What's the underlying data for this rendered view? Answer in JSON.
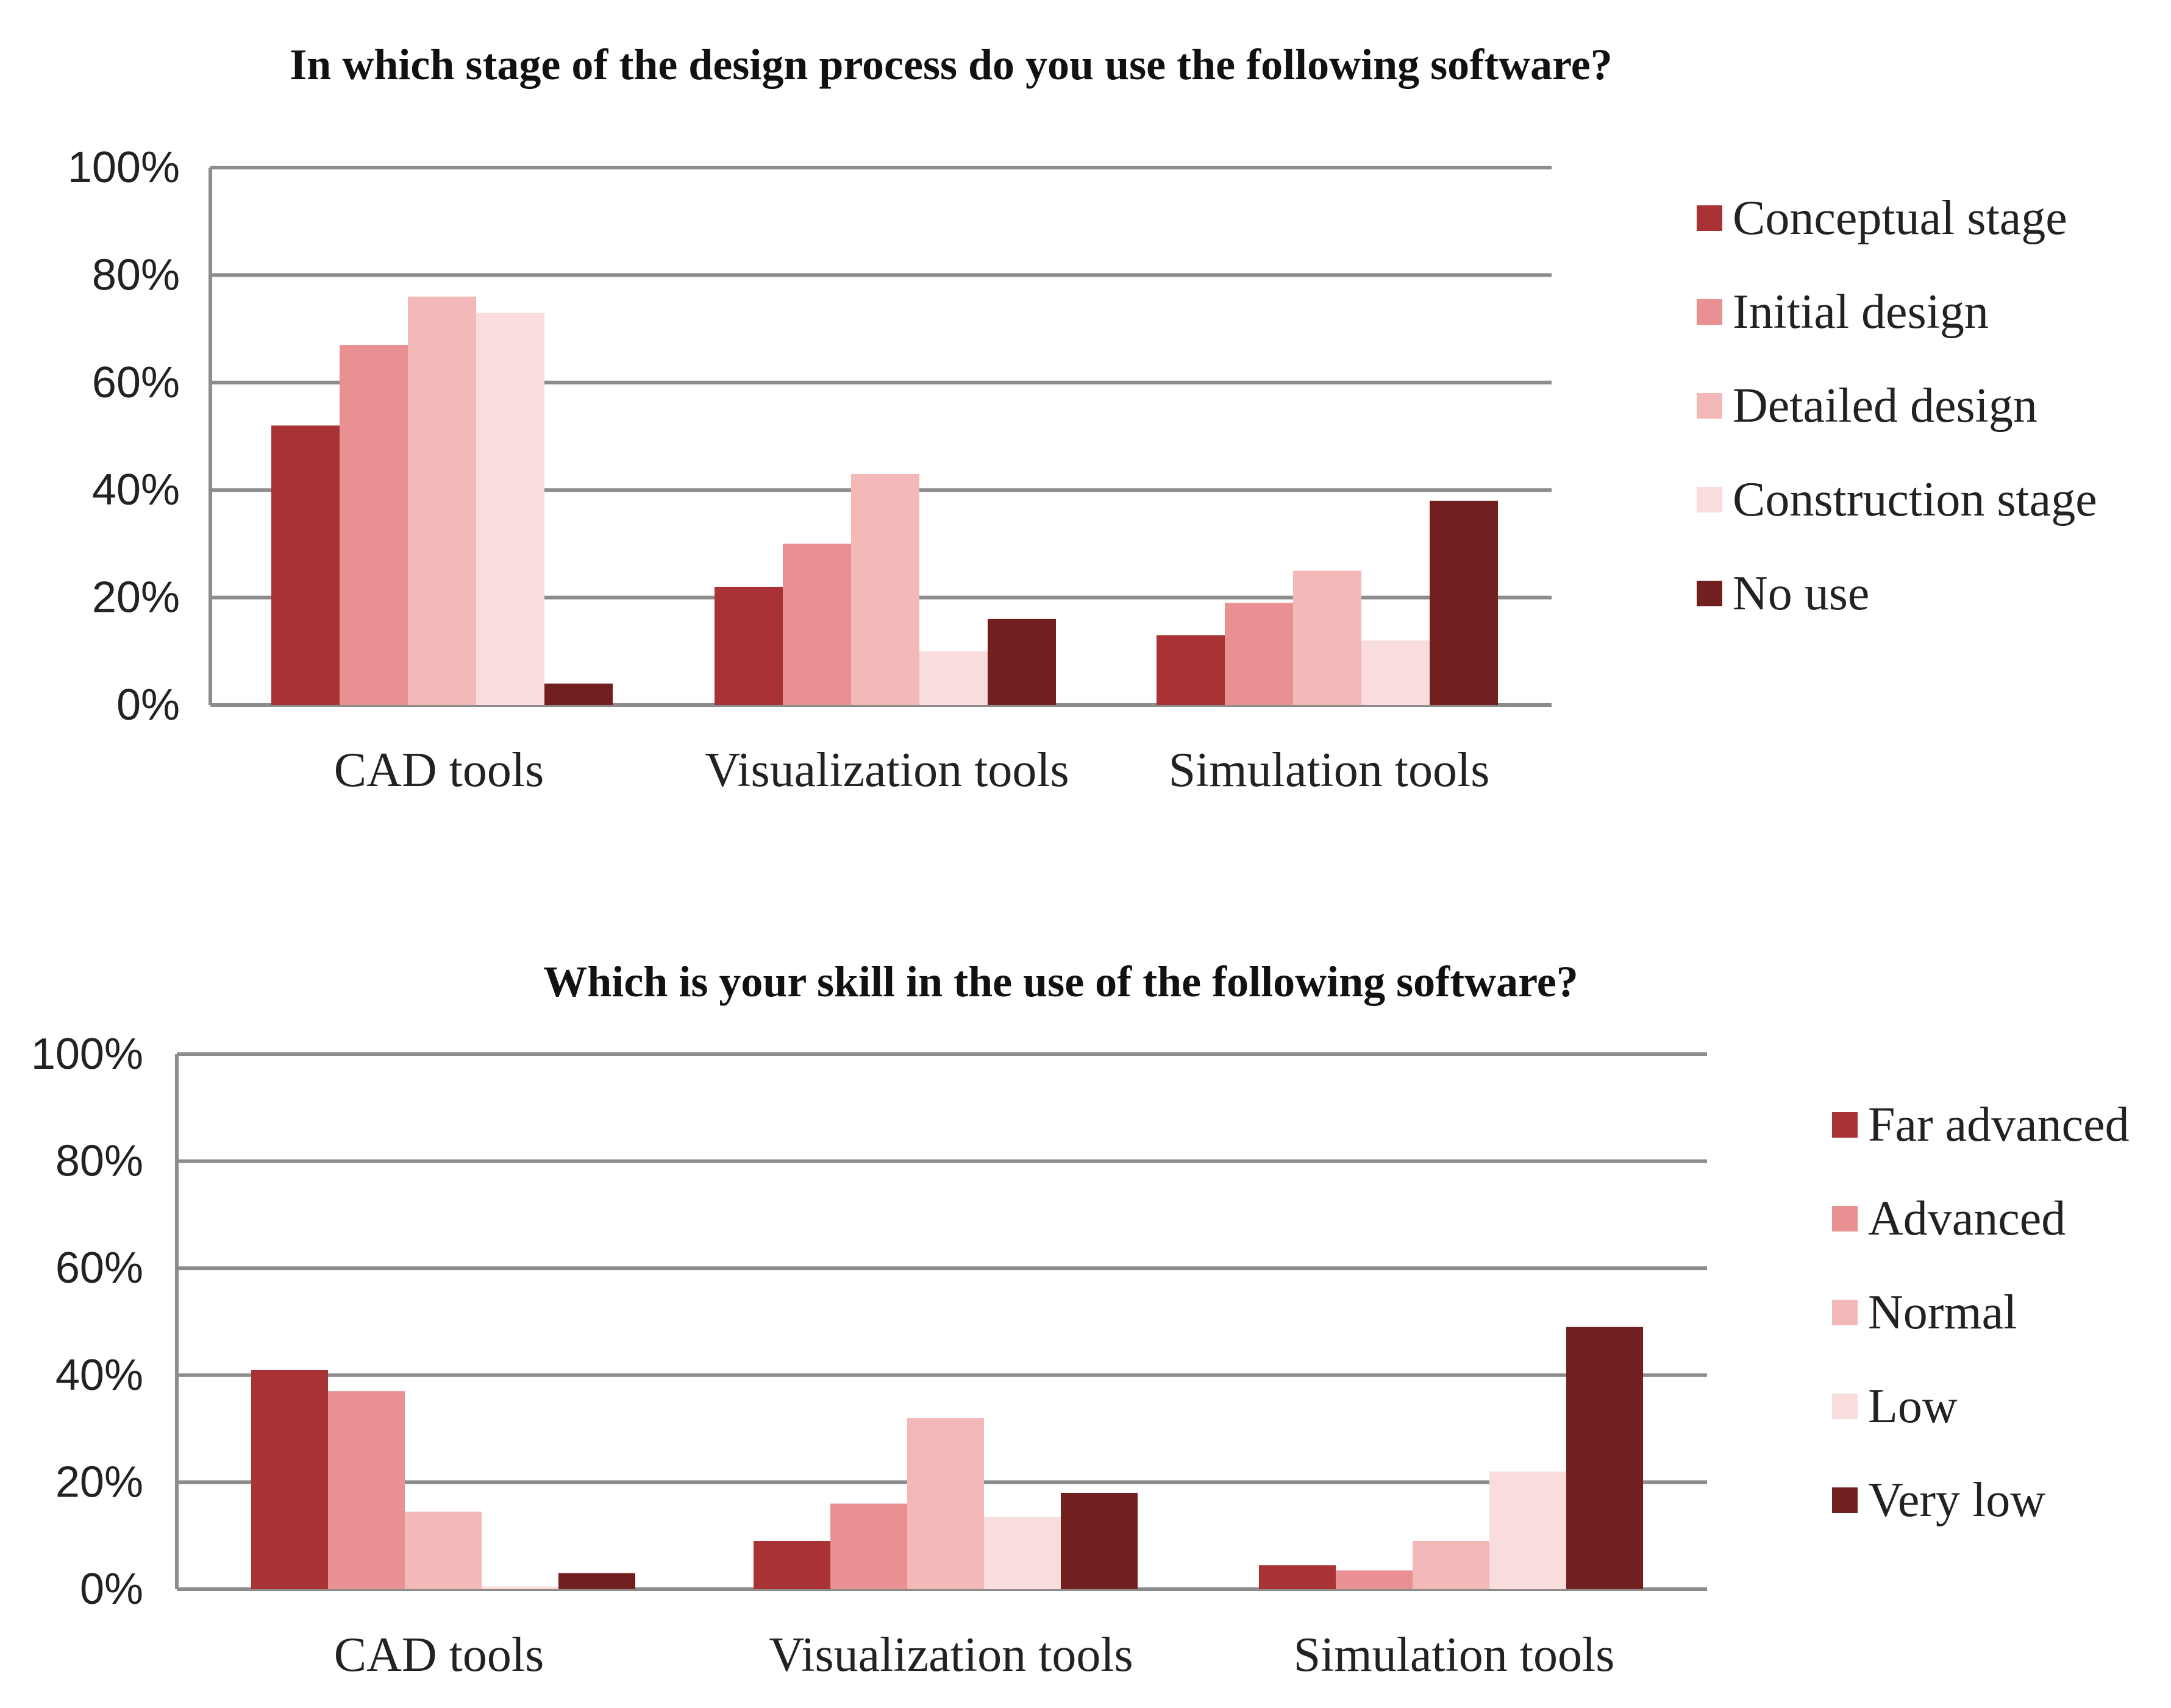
{
  "chart_data": [
    {
      "type": "bar",
      "title": "In which stage of the design process do you use the following software?",
      "categories": [
        "CAD tools",
        "Visualization tools",
        "Simulation tools"
      ],
      "y_ticks": [
        "0%",
        "20%",
        "40%",
        "60%",
        "80%",
        "100%"
      ],
      "ylim": [
        0,
        100
      ],
      "xlabel": "",
      "ylabel": "",
      "grid": true,
      "legend_position": "right",
      "series": [
        {
          "name": "Conceptual stage",
          "color": "#a83234",
          "values": [
            52,
            22,
            13
          ]
        },
        {
          "name": "Initial design",
          "color": "#e99192",
          "values": [
            67,
            30,
            19
          ]
        },
        {
          "name": "Detailed design",
          "color": "#f3b8b8",
          "values": [
            76,
            43,
            25
          ]
        },
        {
          "name": "Construction stage",
          "color": "#f9dcdc",
          "values": [
            73,
            10,
            12
          ]
        },
        {
          "name": "No use",
          "color": "#721f1f",
          "values": [
            4,
            16,
            38
          ]
        }
      ]
    },
    {
      "type": "bar",
      "title": "Which is your skill in the use of the following software?",
      "categories": [
        "CAD tools",
        "Visualization tools",
        "Simulation tools"
      ],
      "y_ticks": [
        "0%",
        "20%",
        "40%",
        "60%",
        "80%",
        "100%"
      ],
      "ylim": [
        0,
        100
      ],
      "xlabel": "",
      "ylabel": "",
      "grid": true,
      "legend_position": "right",
      "series": [
        {
          "name": "Far advanced",
          "color": "#a83234",
          "values": [
            41,
            9,
            4.5
          ]
        },
        {
          "name": "Advanced",
          "color": "#e99192",
          "values": [
            37,
            16,
            3.5
          ]
        },
        {
          "name": "Normal",
          "color": "#f3b8b8",
          "values": [
            14.5,
            32,
            9
          ]
        },
        {
          "name": "Low",
          "color": "#f9dcdc",
          "values": [
            0.5,
            13.5,
            22
          ]
        },
        {
          "name": "Very low",
          "color": "#721f1f",
          "values": [
            3,
            18,
            49
          ]
        }
      ]
    }
  ]
}
